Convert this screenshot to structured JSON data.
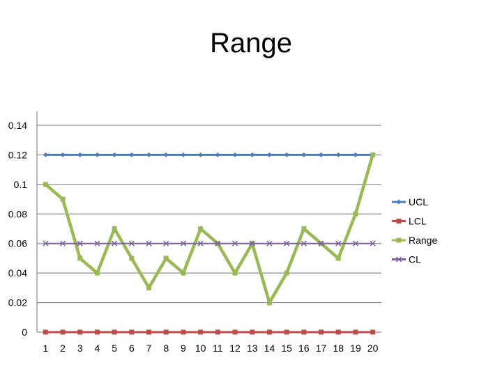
{
  "slide": {
    "title": "Range"
  },
  "chart_data": {
    "type": "line",
    "title": "Range",
    "xlabel": "",
    "ylabel": "",
    "categories": [
      "1",
      "2",
      "3",
      "4",
      "5",
      "6",
      "7",
      "8",
      "9",
      "10",
      "11",
      "12",
      "13",
      "14",
      "15",
      "16",
      "17",
      "18",
      "19",
      "20"
    ],
    "ylim": [
      0,
      0.14
    ],
    "yticks": [
      "0",
      "0.02",
      "0.04",
      "0.06",
      "0.08",
      "0.1",
      "0.12",
      "0.14"
    ],
    "grid": true,
    "legend": "right",
    "series": [
      {
        "name": "UCL",
        "color": "#4a7ebb",
        "marker": "diamond",
        "values": [
          0.12,
          0.12,
          0.12,
          0.12,
          0.12,
          0.12,
          0.12,
          0.12,
          0.12,
          0.12,
          0.12,
          0.12,
          0.12,
          0.12,
          0.12,
          0.12,
          0.12,
          0.12,
          0.12,
          0.12
        ]
      },
      {
        "name": "LCL",
        "color": "#be4b48",
        "marker": "square",
        "values": [
          0,
          0,
          0,
          0,
          0,
          0,
          0,
          0,
          0,
          0,
          0,
          0,
          0,
          0,
          0,
          0,
          0,
          0,
          0,
          0
        ]
      },
      {
        "name": "Range",
        "color": "#98b954",
        "marker": "triangle",
        "values": [
          0.1,
          0.09,
          0.05,
          0.04,
          0.07,
          0.05,
          0.03,
          0.05,
          0.04,
          0.07,
          0.06,
          0.04,
          0.06,
          0.02,
          0.04,
          0.07,
          0.06,
          0.05,
          0.08,
          0.12
        ]
      },
      {
        "name": "CL",
        "color": "#7d60a0",
        "marker": "x",
        "values": [
          0.06,
          0.06,
          0.06,
          0.06,
          0.06,
          0.06,
          0.06,
          0.06,
          0.06,
          0.06,
          0.06,
          0.06,
          0.06,
          0.06,
          0.06,
          0.06,
          0.06,
          0.06,
          0.06,
          0.06
        ]
      }
    ]
  }
}
